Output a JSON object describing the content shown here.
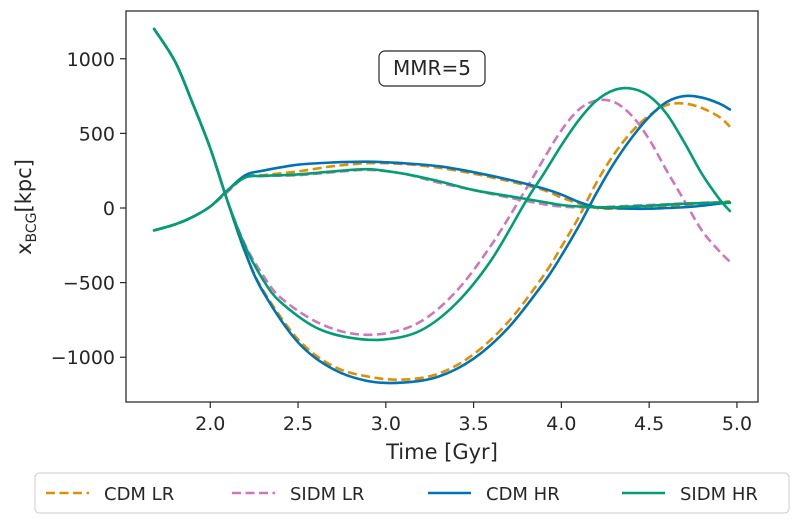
{
  "chart_data": {
    "type": "line",
    "title": "",
    "xlabel": "Time [Gyr]",
    "ylabel_main": "x",
    "ylabel_sub": "BCG",
    "ylabel_unit": "[kpc]",
    "xlim": [
      1.52,
      5.12
    ],
    "ylim": [
      -1300,
      1320
    ],
    "xticks": [
      2.0,
      2.5,
      3.0,
      3.5,
      4.0,
      4.5,
      5.0
    ],
    "xtick_labels": [
      "2.0",
      "2.5",
      "3.0",
      "3.5",
      "4.0",
      "4.5",
      "5.0"
    ],
    "yticks": [
      -1000,
      -500,
      0,
      500,
      1000
    ],
    "ytick_labels": [
      "−1000",
      "−500",
      "0",
      "500",
      "1000"
    ],
    "annotation": "MMR=5",
    "legend_position": "bottom, outside",
    "series": [
      {
        "name": "CDM LR",
        "color": "#de8f05",
        "dash": "dashed",
        "curves": [
          {
            "x": [
              1.68,
              1.8,
              1.9,
              2.0,
              2.1,
              2.2,
              2.3,
              2.5,
              2.7,
              2.9,
              3.1,
              3.3,
              3.5,
              3.7,
              3.9,
              4.0,
              4.1,
              4.2,
              4.3,
              4.4,
              4.5,
              4.6,
              4.7,
              4.8,
              4.9,
              4.96
            ],
            "y": [
              1200,
              980,
              700,
              400,
              40,
              -300,
              -550,
              -880,
              -1060,
              -1130,
              -1150,
              -1110,
              -980,
              -760,
              -450,
              -260,
              -60,
              170,
              360,
              510,
              620,
              690,
              700,
              670,
              610,
              545
            ]
          },
          {
            "x": [
              1.68,
              1.8,
              1.9,
              2.0,
              2.1,
              2.2,
              2.3,
              2.5,
              2.7,
              2.9,
              3.1,
              3.3,
              3.5,
              3.7,
              3.9,
              4.0,
              4.1,
              4.2,
              4.3,
              4.4,
              4.5,
              4.6,
              4.7,
              4.8,
              4.9,
              4.96
            ],
            "y": [
              -150,
              -110,
              -60,
              10,
              110,
              210,
              220,
              245,
              280,
              300,
              295,
              270,
              230,
              180,
              120,
              70,
              30,
              0,
              -5,
              0,
              10,
              15,
              20,
              30,
              40,
              45
            ]
          }
        ]
      },
      {
        "name": "SIDM LR",
        "color": "#cc78bc",
        "dash": "dashed",
        "curves": [
          {
            "x": [
              1.68,
              1.8,
              1.9,
              2.0,
              2.1,
              2.2,
              2.3,
              2.4,
              2.6,
              2.8,
              3.0,
              3.2,
              3.4,
              3.6,
              3.8,
              3.9,
              4.0,
              4.1,
              4.2,
              4.3,
              4.4,
              4.5,
              4.6,
              4.7,
              4.8,
              4.9,
              4.96
            ],
            "y": [
              1200,
              980,
              700,
              400,
              40,
              -250,
              -450,
              -600,
              -760,
              -840,
              -840,
              -760,
              -560,
              -250,
              130,
              330,
              520,
              660,
              720,
              710,
              620,
              460,
              250,
              50,
              -150,
              -290,
              -360
            ]
          },
          {
            "x": [
              1.68,
              1.8,
              1.9,
              2.0,
              2.1,
              2.2,
              2.3,
              2.5,
              2.7,
              2.9,
              3.1,
              3.3,
              3.5,
              3.7,
              3.9,
              4.0,
              4.1,
              4.2,
              4.3,
              4.4,
              4.5,
              4.6,
              4.7,
              4.8,
              4.9,
              4.96
            ],
            "y": [
              -150,
              -110,
              -60,
              10,
              110,
              210,
              215,
              220,
              240,
              255,
              230,
              170,
              120,
              70,
              25,
              10,
              5,
              5,
              10,
              15,
              20,
              25,
              30,
              35,
              38,
              40
            ]
          }
        ]
      },
      {
        "name": "CDM HR",
        "color": "#0173b2",
        "dash": "solid",
        "curves": [
          {
            "x": [
              1.68,
              1.8,
              1.9,
              2.0,
              2.1,
              2.2,
              2.3,
              2.5,
              2.7,
              2.9,
              3.1,
              3.3,
              3.5,
              3.7,
              3.9,
              4.0,
              4.1,
              4.2,
              4.3,
              4.4,
              4.5,
              4.6,
              4.7,
              4.8,
              4.9,
              4.96
            ],
            "y": [
              1200,
              980,
              700,
              400,
              40,
              -300,
              -560,
              -900,
              -1080,
              -1160,
              -1170,
              -1130,
              -1010,
              -800,
              -500,
              -320,
              -120,
              100,
              300,
              470,
              610,
              710,
              750,
              740,
              700,
              660
            ]
          },
          {
            "x": [
              1.68,
              1.8,
              1.9,
              2.0,
              2.1,
              2.2,
              2.3,
              2.5,
              2.7,
              2.9,
              3.1,
              3.3,
              3.5,
              3.7,
              3.9,
              4.0,
              4.1,
              4.2,
              4.3,
              4.4,
              4.5,
              4.6,
              4.7,
              4.8,
              4.9,
              4.96
            ],
            "y": [
              -150,
              -110,
              -60,
              10,
              120,
              220,
              250,
              290,
              305,
              310,
              300,
              280,
              240,
              190,
              130,
              90,
              40,
              5,
              0,
              -5,
              -5,
              0,
              5,
              15,
              30,
              35
            ]
          }
        ]
      },
      {
        "name": "SIDM HR",
        "color": "#029e73",
        "dash": "solid",
        "curves": [
          {
            "x": [
              1.68,
              1.8,
              1.9,
              2.0,
              2.1,
              2.2,
              2.3,
              2.4,
              2.6,
              2.8,
              3.0,
              3.2,
              3.4,
              3.6,
              3.8,
              3.9,
              4.0,
              4.1,
              4.2,
              4.3,
              4.4,
              4.5,
              4.6,
              4.7,
              4.8,
              4.9,
              4.96
            ],
            "y": [
              1200,
              980,
              700,
              400,
              40,
              -260,
              -480,
              -630,
              -800,
              -870,
              -880,
              -820,
              -640,
              -350,
              50,
              230,
              420,
              590,
              720,
              790,
              800,
              750,
              630,
              440,
              230,
              60,
              -20
            ]
          },
          {
            "x": [
              1.68,
              1.8,
              1.9,
              2.0,
              2.1,
              2.2,
              2.3,
              2.5,
              2.7,
              2.9,
              3.1,
              3.3,
              3.5,
              3.7,
              3.9,
              4.0,
              4.1,
              4.2,
              4.3,
              4.4,
              4.5,
              4.6,
              4.7,
              4.8,
              4.9,
              4.96
            ],
            "y": [
              -150,
              -110,
              -60,
              10,
              120,
              205,
              215,
              225,
              245,
              260,
              230,
              180,
              120,
              80,
              40,
              20,
              10,
              5,
              5,
              10,
              15,
              22,
              28,
              33,
              36,
              38
            ]
          }
        ]
      }
    ]
  }
}
